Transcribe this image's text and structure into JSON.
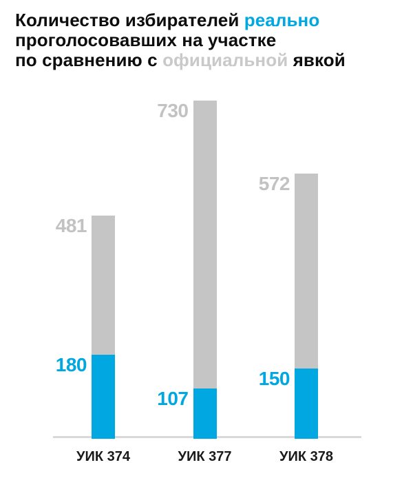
{
  "title": {
    "line1_part1": "Количество избирателей ",
    "line1_highlight": "реально",
    "line2": "проголосовавших на участке",
    "line3_part1": "по сравнению с ",
    "line3_muted": "официальной",
    "line3_part2": " явкой"
  },
  "colors": {
    "accent_blue": "#00a7e0",
    "bar_gray": "#c5c5c5",
    "value_label_gray": "#c2c2c2",
    "title_muted_gray": "#c9c9c9",
    "axis_line": "#d9d9d9",
    "text_black": "#0d0d0d"
  },
  "chart_data": {
    "type": "bar",
    "title": "Количество избирателей реально проголосовавших на участке по сравнению с официальной явкой",
    "categories": [
      "УИК 374",
      "УИК 377",
      "УИК 378"
    ],
    "series": [
      {
        "name": "официальная явка",
        "values": [
          481,
          730,
          572
        ],
        "color": "#c5c5c5"
      },
      {
        "name": "реально проголосовавшие",
        "values": [
          180,
          107,
          150
        ],
        "color": "#00a7e0"
      }
    ],
    "bar_style": "overlaid-from-zero",
    "value_label_position": "left-of-bar-top",
    "ylim": [
      0,
      730
    ],
    "grid": false,
    "legend": "none",
    "xlabel": "",
    "ylabel": ""
  }
}
